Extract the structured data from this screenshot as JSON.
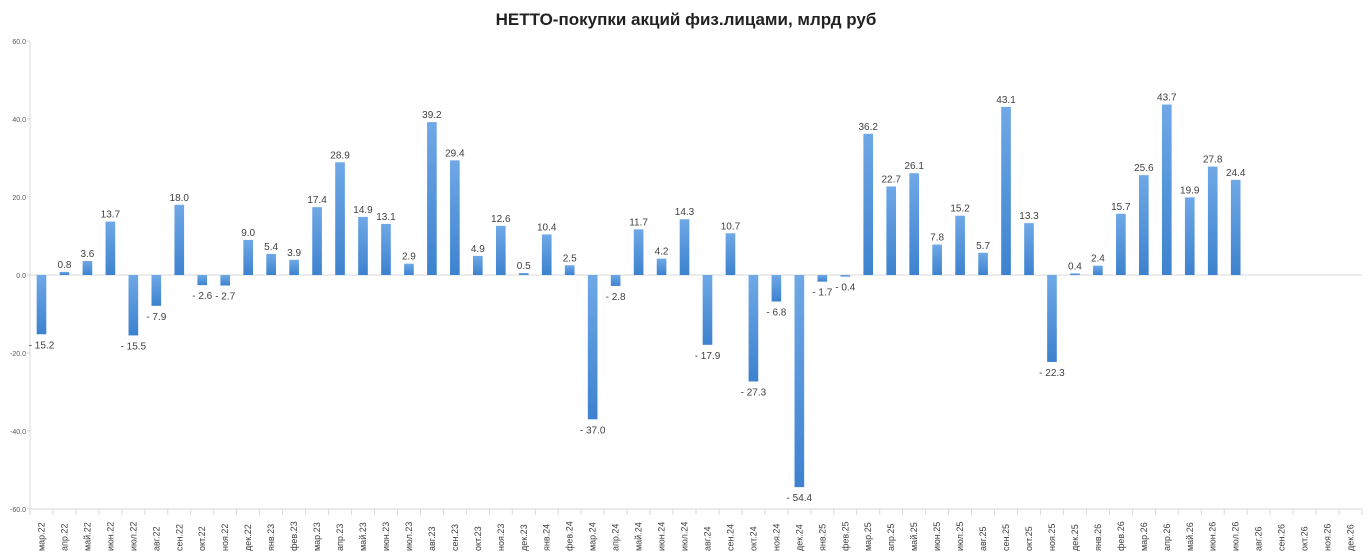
{
  "chart_data": {
    "type": "bar",
    "title": "НЕТТО-покупки акций физ.лицами, млрд руб",
    "xlabel": "",
    "ylabel": "",
    "ylim": [
      -60,
      60
    ],
    "yticks": [
      60,
      40,
      20,
      0,
      -20,
      -40,
      -60
    ],
    "ytick_labels": [
      "60.0",
      "40.0",
      "20.0",
      "0.0",
      "-20.0",
      "-40.0",
      "-60.0"
    ],
    "grid": false,
    "legend": "none",
    "bar_color": "#4a90d9",
    "categories": [
      "мар.22",
      "апр.22",
      "май.22",
      "июн.22",
      "июл.22",
      "авг.22",
      "сен.22",
      "окт.22",
      "ноя.22",
      "дек.22",
      "янв.23",
      "фев.23",
      "мар.23",
      "апр.23",
      "май.23",
      "июн.23",
      "июл.23",
      "авг.23",
      "сен.23",
      "окт.23",
      "ноя.23",
      "дек.23",
      "янв.24",
      "фев.24",
      "мар.24",
      "апр.24",
      "май.24",
      "июн.24",
      "июл.24",
      "авг.24",
      "сен.24",
      "окт.24",
      "ноя.24",
      "дек.24",
      "янв.25",
      "фев.25",
      "мар.25",
      "апр.25",
      "май.25",
      "июн.25",
      "июл.25",
      "авг.25",
      "сен.25",
      "окт.25",
      "ноя.25",
      "дек.25",
      "янв.26",
      "фев.26",
      "мар.26",
      "апр.26",
      "май.26",
      "июн.26",
      "июл.26",
      "авг.26",
      "сен.26",
      "окт.26",
      "ноя.26",
      "дек.26"
    ],
    "values": [
      -15.2,
      0.8,
      3.6,
      13.7,
      -15.5,
      -7.9,
      18.0,
      -2.6,
      -2.7,
      9.0,
      5.4,
      3.9,
      17.4,
      28.9,
      14.9,
      13.1,
      2.9,
      39.2,
      29.4,
      4.9,
      12.6,
      0.5,
      10.4,
      2.5,
      -37.0,
      -2.8,
      11.7,
      4.2,
      14.3,
      -17.9,
      10.7,
      -27.3,
      -6.8,
      -54.4,
      -1.7,
      -0.4,
      36.2,
      22.7,
      26.1,
      7.8,
      15.2,
      5.7,
      43.1,
      13.3,
      -22.3,
      0.4,
      2.4,
      15.7,
      25.6,
      43.7,
      19.9,
      27.8,
      24.4,
      null,
      null,
      null,
      null,
      null
    ],
    "data_labels": [
      "- 15.2",
      "0.8",
      "3.6",
      "13.7",
      "- 15.5",
      "- 7.9",
      "18.0",
      "- 2.6",
      "- 2.7",
      "9.0",
      "5.4",
      "3.9",
      "17.4",
      "28.9",
      "14.9",
      "13.1",
      "2.9",
      "39.2",
      "29.4",
      "4.9",
      "12.6",
      "0.5",
      "10.4",
      "2.5",
      "- 37.0",
      "- 2.8",
      "11.7",
      "4.2",
      "14.3",
      "- 17.9",
      "10.7",
      "- 27.3",
      "- 6.8",
      "- 54.4",
      "- 1.7",
      "- 0.4",
      "36.2",
      "22.7",
      "26.1",
      "7.8",
      "15.2",
      "5.7",
      "43.1",
      "13.3",
      "- 22.3",
      "0.4",
      "2.4",
      "15.7",
      "25.6",
      "43.7",
      "19.9",
      "27.8",
      "24.4",
      "",
      "",
      "",
      "",
      ""
    ]
  }
}
